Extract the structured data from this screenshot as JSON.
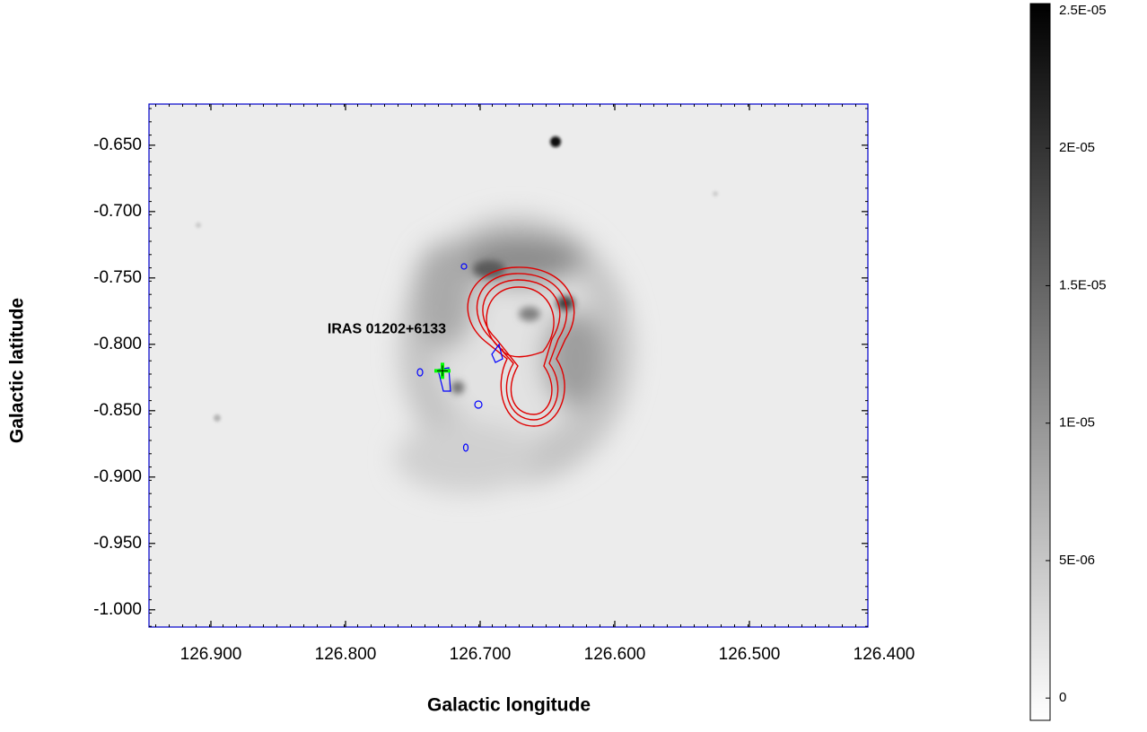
{
  "chart_data": {
    "type": "image",
    "xlabel": "Galactic longitude",
    "ylabel": "Galactic latitude",
    "xlim": [
      126.946,
      126.412
    ],
    "ylim": [
      -1.013,
      -0.619
    ],
    "xticks": [
      {
        "value": 126.9,
        "label": "126.900"
      },
      {
        "value": 126.8,
        "label": "126.800"
      },
      {
        "value": 126.7,
        "label": "126.700"
      },
      {
        "value": 126.6,
        "label": "126.600"
      },
      {
        "value": 126.5,
        "label": "126.500"
      },
      {
        "value": 126.4,
        "label": "126.400"
      }
    ],
    "yticks": [
      {
        "value": -0.65,
        "label": "-0.650"
      },
      {
        "value": -0.7,
        "label": "-0.700"
      },
      {
        "value": -0.75,
        "label": "-0.750"
      },
      {
        "value": -0.8,
        "label": "-0.800"
      },
      {
        "value": -0.85,
        "label": "-0.850"
      },
      {
        "value": -0.9,
        "label": "-0.900"
      },
      {
        "value": -0.95,
        "label": "-0.950"
      },
      {
        "value": -1.0,
        "label": "-1.000"
      }
    ],
    "colorbar": {
      "clim": [
        -8.1e-07,
        2.526e-05
      ],
      "ticks": [
        {
          "value": 2.5e-05,
          "label": "2.5E-05"
        },
        {
          "value": 2e-05,
          "label": "2E-05"
        },
        {
          "value": 1.5e-05,
          "label": "1.5E-05"
        },
        {
          "value": 1e-05,
          "label": "1E-05"
        },
        {
          "value": 5e-06,
          "label": "5E-06"
        },
        0
      ]
    },
    "source": {
      "name": "IRAS 01202+6133",
      "x": 126.728,
      "y": -0.82,
      "color": "#00ff00"
    }
  }
}
